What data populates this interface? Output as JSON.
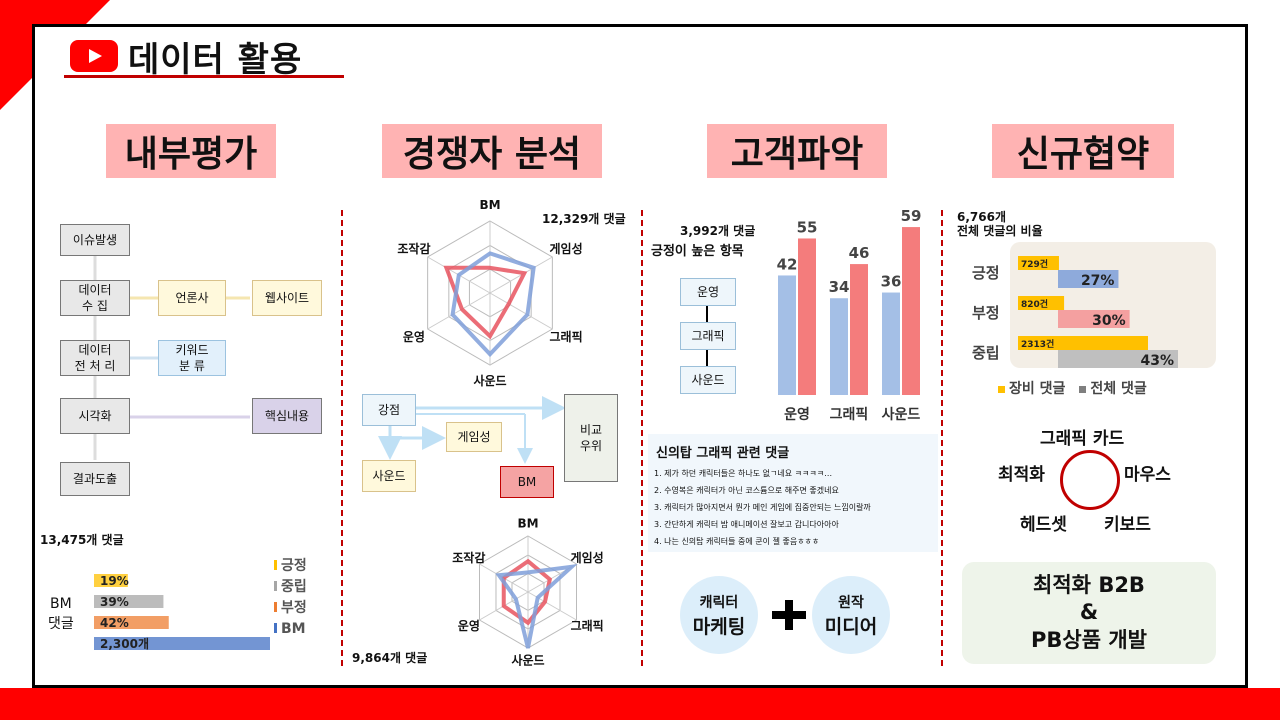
{
  "header": {
    "title": "데이터 활용"
  },
  "colors": {
    "accent": "#ff0000",
    "section_bg": "#ffb3b3",
    "separator": "#c00000"
  },
  "sections": [
    {
      "title": "내부평가"
    },
    {
      "title": "경쟁자 분석"
    },
    {
      "title": "고객파악"
    },
    {
      "title": "신규협약"
    }
  ],
  "internal": {
    "flow": [
      {
        "label": "이슈발생"
      },
      {
        "label": "데이터\n수 집"
      },
      {
        "label": "데이터\n전 처 리"
      },
      {
        "label": "시각화"
      },
      {
        "label": "결과도출"
      }
    ],
    "side": [
      {
        "label": "언론사"
      },
      {
        "label": "웹사이트"
      },
      {
        "label": "키워드\n분 류"
      },
      {
        "label": "핵심내용"
      }
    ],
    "comment_count": "13,475개 댓글",
    "bm_label": "BM\n댓글",
    "bars": [
      {
        "label": "19%",
        "value": 19,
        "color": "#ffc000"
      },
      {
        "label": "39%",
        "value": 39,
        "color": "#a6a6a6"
      },
      {
        "label": "42%",
        "value": 42,
        "color": "#ed7d31"
      },
      {
        "label": "2,300개",
        "value": 100,
        "color": "#4472c4"
      }
    ],
    "legend": [
      "긍정",
      "중립",
      "부정",
      "BM"
    ]
  },
  "competitor": {
    "radar1": {
      "count": "12,329개 댓글",
      "axes": [
        "BM",
        "게임성",
        "그래픽",
        "사운드",
        "운영",
        "조작감"
      ],
      "series": [
        {
          "values": [
            0.35,
            0.55,
            0.3,
            0.6,
            0.45,
            0.7
          ],
          "color": "#e8535f"
        },
        {
          "values": [
            0.55,
            0.7,
            0.6,
            0.85,
            0.6,
            0.5
          ],
          "color": "#7f9fd9"
        }
      ]
    },
    "flow": [
      {
        "label": "강점"
      },
      {
        "label": "게임성"
      },
      {
        "label": "사운드"
      },
      {
        "label": "BM"
      },
      {
        "label": "비교\n우위"
      }
    ],
    "radar2": {
      "count": "9,864개 댓글",
      "axes": [
        "BM",
        "게임성",
        "그래픽",
        "사운드",
        "운영",
        "조작감"
      ],
      "series": [
        {
          "values": [
            0.55,
            0.45,
            0.35,
            0.55,
            0.5,
            0.5
          ],
          "color": "#e8535f"
        },
        {
          "values": [
            0.35,
            0.9,
            0.2,
            1.0,
            0.25,
            0.6
          ],
          "color": "#7f9fd9"
        }
      ]
    }
  },
  "customer": {
    "count": "3,992개 댓글",
    "subtitle": "긍정이 높은 항목",
    "flow": [
      {
        "label": "운영"
      },
      {
        "label": "그래픽"
      },
      {
        "label": "사운드"
      }
    ],
    "chart_data": {
      "type": "bar",
      "categories": [
        "운영",
        "그래픽",
        "사운드"
      ],
      "series": [
        {
          "values": [
            42,
            34,
            36
          ],
          "color": "#a4bfe6"
        },
        {
          "values": [
            55,
            46,
            59
          ],
          "color": "#f47c7c"
        }
      ],
      "ylim": [
        0,
        65
      ]
    },
    "comments_title": "신의탑 그래픽 관련 댓글",
    "comments": [
      "1. 제가 하던 캐릭터들은 하나도 없ㄱ네요 ㅋㅋㅋㅋ…",
      "2. 수영복은 캐릭터가 아닌 코스튬으로 해주면 좋겠네요",
      "3. 캐릭터가 많아지면서 뭔가 메인 게임에 집중안되는 느낌이랄까",
      "3. 간단하게 캐릭터 밤 애니메이션 잘보고 갑니다아아아",
      "4. 나는 신의탑 캐릭터들 중에 쿤이 젤 좋음ㅎㅎㅎ"
    ],
    "circle_left": {
      "l1": "캐릭터",
      "l2": "마케팅"
    },
    "circle_right": {
      "l1": "원작",
      "l2": "미디어"
    }
  },
  "agreement": {
    "count": "6,766개",
    "subtitle": "전체 댓글의 비율",
    "chart_data": {
      "type": "bar",
      "categories": [
        "긍정",
        "부정",
        "중립"
      ],
      "series": [
        {
          "name": "장비 댓글",
          "values": [
            729,
            820,
            2313
          ],
          "labels": [
            "729건",
            "820건",
            "2313건"
          ],
          "color": "#ffc000"
        },
        {
          "name": "전체 댓글",
          "values": [
            27,
            30,
            43
          ],
          "labels": [
            "27%",
            "30%",
            "43%"
          ],
          "colors": [
            "#8eaadb",
            "#f4a0a0",
            "#bfbfbf"
          ]
        }
      ]
    },
    "legend": [
      "장비 댓글",
      "전체 댓글"
    ],
    "keywords": {
      "center_top": "그래픽 카드",
      "left": "최적화",
      "right": "마우스",
      "bottom_left": "헤드셋",
      "bottom_right": "키보드"
    },
    "final": {
      "l1": "최적화 B2B",
      "l2": "&",
      "l3": "PB상품 개발"
    }
  }
}
